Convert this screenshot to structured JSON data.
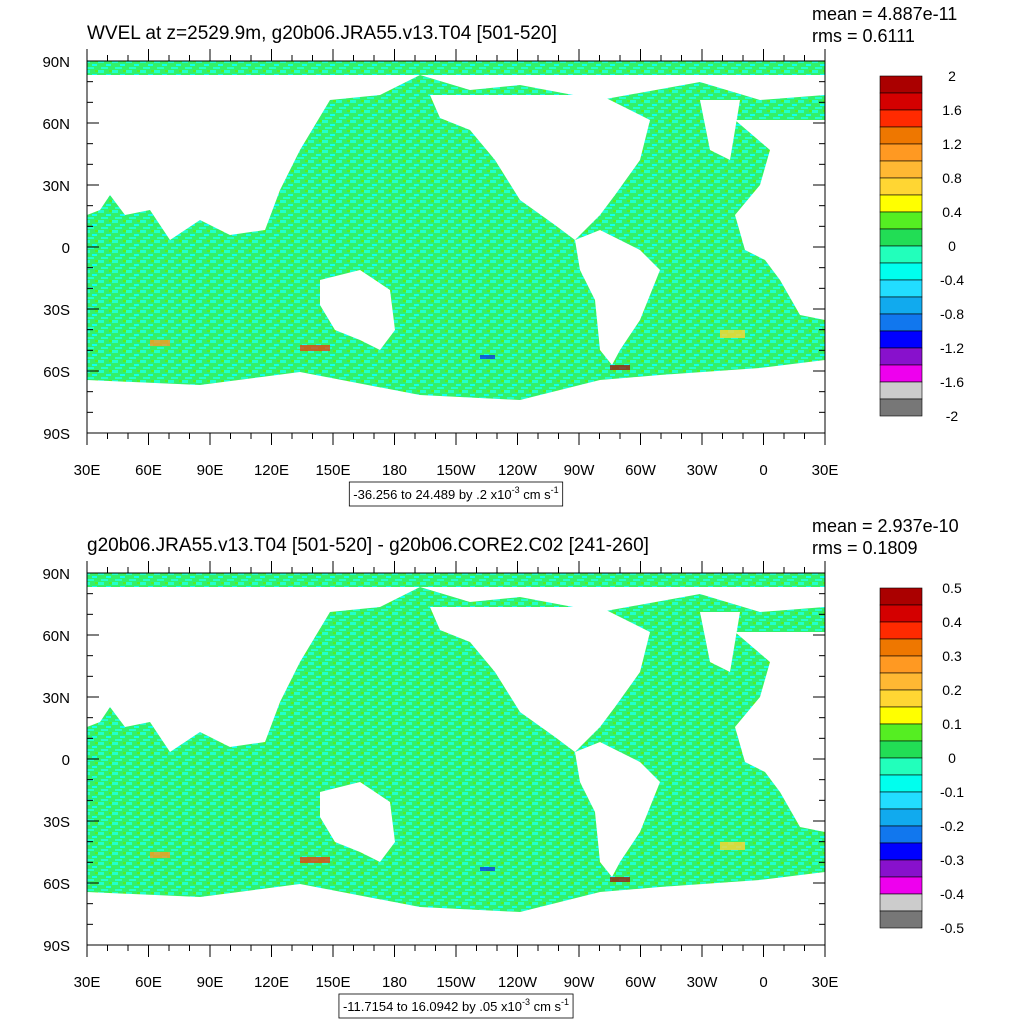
{
  "panels": [
    {
      "title": "WVEL at z=2529.9m, g20b06.JRA55.v13.T04 [501-520]",
      "mean": "mean = 4.887e-11",
      "rms": "rms = 0.6111",
      "yticks": [
        "90N",
        "60N",
        "30N",
        "0",
        "30S",
        "60S",
        "90S"
      ],
      "xticks": [
        "30E",
        "60E",
        "90E",
        "120E",
        "150E",
        "180",
        "150W",
        "120W",
        "90W",
        "60W",
        "30W",
        "0",
        "30E"
      ],
      "colorbar": {
        "labels": [
          "2",
          "1.6",
          "1.2",
          "0.8",
          "0.4",
          "0",
          "-0.4",
          "-0.8",
          "-1.2",
          "-1.6",
          "-2"
        ],
        "colors": [
          "#aa0000",
          "#d40000",
          "#ff2a00",
          "#ee7700",
          "#ff9922",
          "#ffb833",
          "#ffd633",
          "#ffff00",
          "#55ee22",
          "#22dd55",
          "#22ffbb",
          "#00ffee",
          "#22ddff",
          "#11aaee",
          "#1177ee",
          "#0000ff",
          "#8811cc",
          "#ee00ee",
          "#cccccc",
          "#777777"
        ]
      },
      "info": [
        "-36.256 to 24.489 by .2 x10",
        "-3",
        " cm s",
        "-1"
      ]
    },
    {
      "title": "g20b06.JRA55.v13.T04 [501-520] - g20b06.CORE2.C02 [241-260]",
      "mean": "mean = 2.937e-10",
      "rms": "rms = 0.1809",
      "yticks": [
        "90N",
        "60N",
        "30N",
        "0",
        "30S",
        "60S",
        "90S"
      ],
      "xticks": [
        "30E",
        "60E",
        "90E",
        "120E",
        "150E",
        "180",
        "150W",
        "120W",
        "90W",
        "60W",
        "30W",
        "0",
        "30E"
      ],
      "colorbar": {
        "labels": [
          "0.5",
          "0.4",
          "0.3",
          "0.2",
          "0.1",
          "0",
          "-0.1",
          "-0.2",
          "-0.3",
          "-0.4",
          "-0.5"
        ],
        "colors": [
          "#aa0000",
          "#d40000",
          "#ff2a00",
          "#ee7700",
          "#ff9922",
          "#ffb833",
          "#ffd633",
          "#ffff00",
          "#55ee22",
          "#22dd55",
          "#22ffbb",
          "#00ffee",
          "#22ddff",
          "#11aaee",
          "#1177ee",
          "#0000ff",
          "#8811cc",
          "#ee00ee",
          "#cccccc",
          "#777777"
        ]
      },
      "info": [
        "-11.7154 to 16.0942 by .05 x10",
        "-3",
        " cm s",
        "-1"
      ]
    }
  ]
}
